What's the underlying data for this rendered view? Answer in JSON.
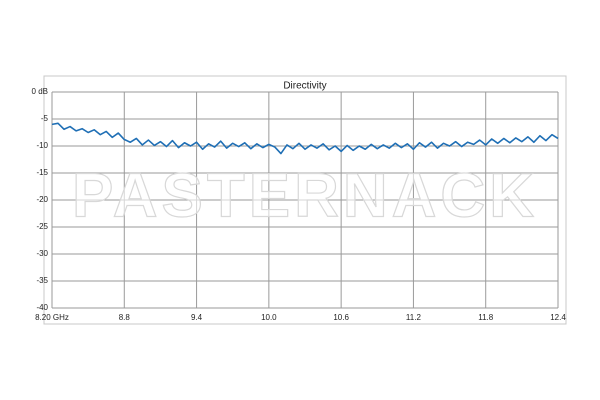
{
  "chart_data": {
    "type": "line",
    "title": "Directivity",
    "watermark": "PASTERNACK",
    "x": [
      8.2,
      8.25,
      8.3,
      8.35,
      8.4,
      8.45,
      8.5,
      8.55,
      8.6,
      8.65,
      8.7,
      8.75,
      8.8,
      8.85,
      8.9,
      8.95,
      9.0,
      9.05,
      9.1,
      9.15,
      9.2,
      9.25,
      9.3,
      9.35,
      9.4,
      9.45,
      9.5,
      9.55,
      9.6,
      9.65,
      9.7,
      9.75,
      9.8,
      9.85,
      9.9,
      9.95,
      10.0,
      10.05,
      10.1,
      10.15,
      10.2,
      10.25,
      10.3,
      10.35,
      10.4,
      10.45,
      10.5,
      10.55,
      10.6,
      10.65,
      10.7,
      10.75,
      10.8,
      10.85,
      10.9,
      10.95,
      11.0,
      11.05,
      11.1,
      11.15,
      11.2,
      11.25,
      11.3,
      11.35,
      11.4,
      11.45,
      11.5,
      11.55,
      11.6,
      11.65,
      11.7,
      11.75,
      11.8,
      11.85,
      11.9,
      11.95,
      12.0,
      12.05,
      12.1,
      12.15,
      12.2,
      12.25,
      12.3,
      12.35,
      12.4
    ],
    "values": [
      -6.0,
      -5.8,
      -6.9,
      -6.4,
      -7.2,
      -6.8,
      -7.5,
      -7.0,
      -7.9,
      -7.3,
      -8.4,
      -7.6,
      -8.8,
      -9.3,
      -8.6,
      -9.8,
      -8.9,
      -9.9,
      -9.2,
      -10.1,
      -9.0,
      -10.3,
      -9.4,
      -10.0,
      -9.3,
      -10.6,
      -9.6,
      -10.2,
      -9.1,
      -10.4,
      -9.5,
      -10.1,
      -9.4,
      -10.5,
      -9.6,
      -10.3,
      -9.7,
      -10.2,
      -11.4,
      -9.8,
      -10.5,
      -9.5,
      -10.6,
      -9.8,
      -10.4,
      -9.6,
      -10.7,
      -10.0,
      -11.0,
      -9.9,
      -10.8,
      -10.0,
      -10.6,
      -9.7,
      -10.5,
      -9.8,
      -10.4,
      -9.5,
      -10.3,
      -9.6,
      -10.6,
      -9.4,
      -10.2,
      -9.3,
      -10.4,
      -9.5,
      -10.0,
      -9.2,
      -10.1,
      -9.3,
      -9.7,
      -8.9,
      -9.8,
      -8.7,
      -9.5,
      -8.6,
      -9.4,
      -8.5,
      -9.2,
      -8.3,
      -9.3,
      -8.1,
      -9.0,
      -7.9,
      -8.6
    ],
    "color": "#1f6fb5",
    "xlim": [
      8.2,
      12.4
    ],
    "xticks": [
      {
        "value": 8.2,
        "label": "8.20 GHz"
      },
      8.8,
      9.4,
      {
        "value": 10.0,
        "label": "10.0"
      },
      10.6,
      11.2,
      11.8,
      12.4
    ],
    "ylim": [
      -40,
      0
    ],
    "yticks": [
      {
        "value": 0,
        "label": "0 dB"
      },
      -5,
      -10,
      -15,
      -20,
      -25,
      -30,
      -35,
      -40
    ],
    "grid": true
  }
}
